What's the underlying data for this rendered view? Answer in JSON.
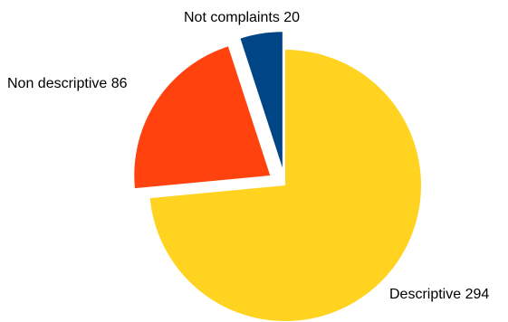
{
  "chart_data": {
    "type": "pie",
    "title": "",
    "start_angle_deg": 0,
    "direction": "clockwise",
    "slices": [
      {
        "label": "Descriptive",
        "value": 294,
        "color": "#FFD320",
        "exploded": false,
        "display": "Descriptive 294"
      },
      {
        "label": "Non descriptive",
        "value": 86,
        "color": "#FF420E",
        "exploded": true,
        "display": "Non descriptive 86"
      },
      {
        "label": "Not complaints",
        "value": 20,
        "color": "#004586",
        "exploded": true,
        "display": "Not complaints 20"
      }
    ],
    "legend": "none"
  }
}
